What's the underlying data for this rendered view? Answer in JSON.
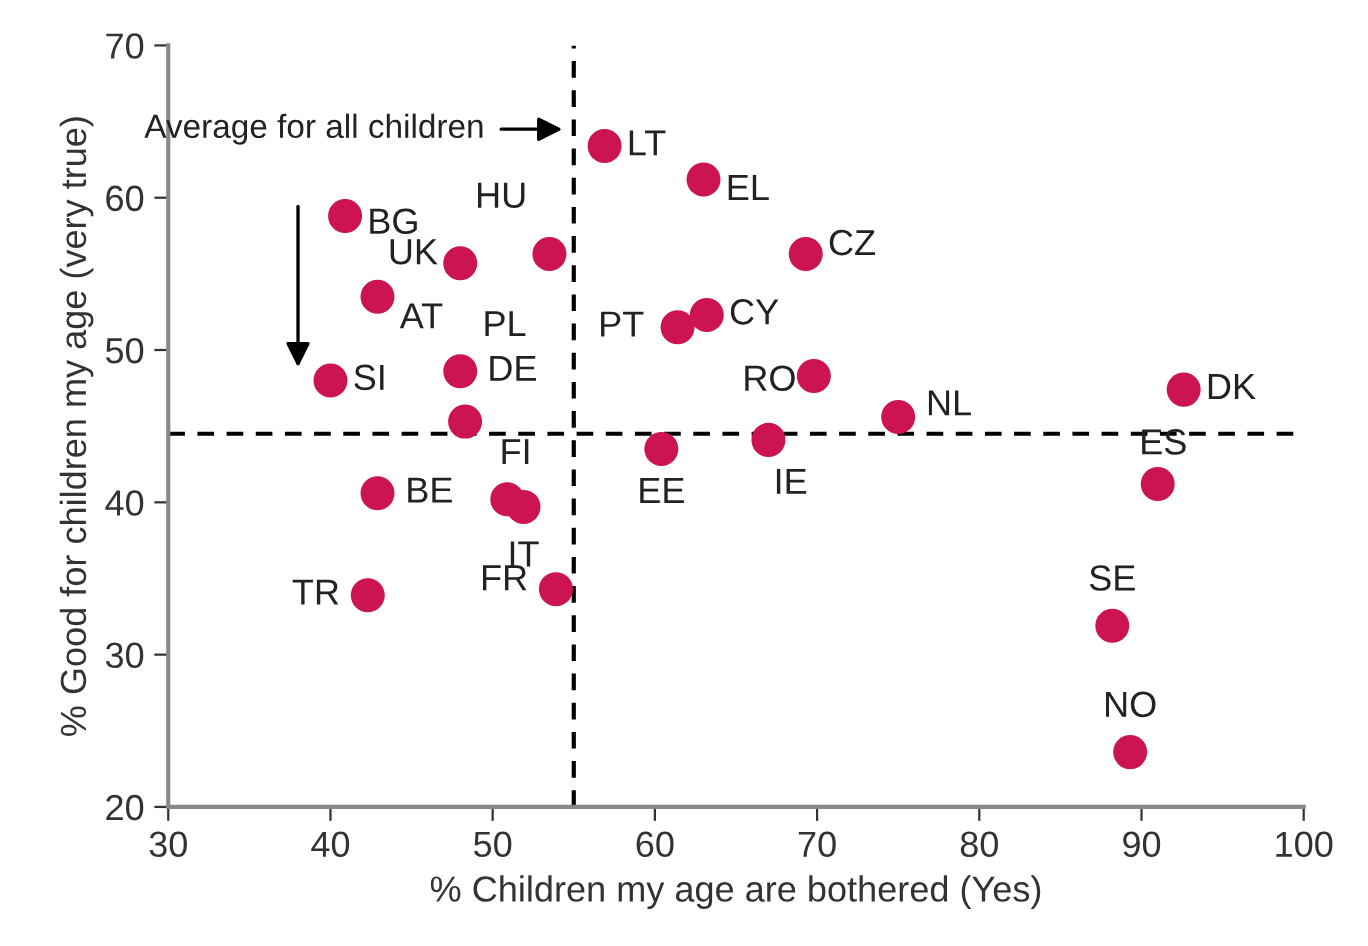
{
  "chart_data": {
    "type": "scatter",
    "xlabel": "% Children my age are bothered (Yes)",
    "ylabel": "% Good for children my age (very true)",
    "x": [
      56.9,
      63.0,
      40.9,
      53.5,
      48.0,
      42.9,
      61.4,
      63.2,
      48.0,
      40.0,
      48.3,
      60.4,
      42.9,
      50.9,
      51.9,
      42.3,
      53.9,
      69.3,
      69.8,
      67.0,
      75.0,
      92.6,
      91.0,
      88.2,
      89.3
    ],
    "values": [
      63.4,
      61.2,
      58.8,
      56.3,
      55.7,
      53.5,
      51.5,
      52.3,
      48.6,
      48.0,
      45.3,
      43.5,
      40.6,
      40.2,
      39.7,
      33.9,
      34.3,
      56.3,
      48.3,
      44.1,
      45.6,
      47.4,
      41.2,
      31.9,
      23.6
    ],
    "color": "#cc1451",
    "marker": "circle",
    "xlim": [
      30,
      100
    ],
    "xticks": [
      30,
      40,
      50,
      60,
      70,
      80,
      90,
      100
    ],
    "ylim": [
      20,
      70
    ],
    "yticks": [
      20,
      30,
      40,
      50,
      60,
      70
    ],
    "grid": false,
    "legend": false,
    "ref_lines": [
      {
        "axis": "x",
        "value": 55,
        "color": "#000000",
        "line_style": "dashed"
      },
      {
        "axis": "y",
        "value": 44.5,
        "color": "#000000",
        "line_style": "dashed"
      }
    ],
    "annotations": [
      {
        "text": "LT",
        "x": 56.9,
        "y": 63.4
      },
      {
        "text": "EL",
        "x": 63.0,
        "y": 61.2
      },
      {
        "text": "BG",
        "x": 40.9,
        "y": 58.8
      },
      {
        "text": "HU",
        "x": 53.5,
        "y": 56.3
      },
      {
        "text": "UK",
        "x": 48.0,
        "y": 55.7
      },
      {
        "text": "AT",
        "x": 42.9,
        "y": 53.5
      },
      {
        "text": "PT",
        "x": 61.4,
        "y": 51.5
      },
      {
        "text": "CY",
        "x": 63.2,
        "y": 52.3
      },
      {
        "text": "PL",
        "x": 48.0,
        "y": 48.6
      },
      {
        "text": "SI",
        "x": 40.0,
        "y": 48.0
      },
      {
        "text": "DE",
        "x": 48.3,
        "y": 45.3
      },
      {
        "text": "EE",
        "x": 60.4,
        "y": 43.5
      },
      {
        "text": "BE",
        "x": 42.9,
        "y": 40.6
      },
      {
        "text": "FI",
        "x": 50.9,
        "y": 40.2
      },
      {
        "text": "IT",
        "x": 51.9,
        "y": 39.7
      },
      {
        "text": "TR",
        "x": 42.3,
        "y": 33.9
      },
      {
        "text": "FR",
        "x": 53.9,
        "y": 34.3
      },
      {
        "text": "CZ",
        "x": 69.3,
        "y": 56.3
      },
      {
        "text": "RO",
        "x": 69.8,
        "y": 48.3
      },
      {
        "text": "IE",
        "x": 67.0,
        "y": 44.1
      },
      {
        "text": "NL",
        "x": 75.0,
        "y": 45.6
      },
      {
        "text": "DK",
        "x": 92.6,
        "y": 47.4
      },
      {
        "text": "ES",
        "x": 91.0,
        "y": 41.2
      },
      {
        "text": "SE",
        "x": 88.2,
        "y": 31.9
      },
      {
        "text": "NO",
        "x": 89.3,
        "y": 23.6
      },
      "Average for all children"
    ]
  }
}
